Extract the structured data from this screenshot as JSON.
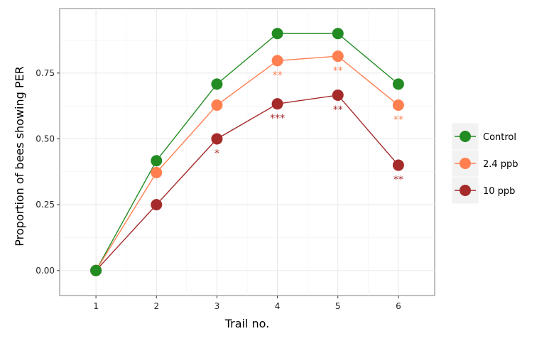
{
  "chart_data": {
    "type": "line",
    "title": "",
    "xlabel": "Trail no.",
    "ylabel": "Proportion of bees showing PER",
    "x": [
      1,
      2,
      3,
      4,
      5,
      6
    ],
    "x_ticks": [
      "1",
      "2",
      "3",
      "4",
      "5",
      "6"
    ],
    "y_ticks": [
      "0.00",
      "0.25",
      "0.50",
      "0.75"
    ],
    "y_tick_values": [
      0,
      0.25,
      0.5,
      0.75
    ],
    "xlim": [
      0.4,
      6.6
    ],
    "ylim": [
      -0.095,
      0.995
    ],
    "grid": true,
    "legend_position": "right",
    "series": [
      {
        "name": "Control",
        "color": "#228b22",
        "values": [
          0.0,
          0.417,
          0.708,
          0.9,
          0.9,
          0.708
        ],
        "significance": [
          "",
          "",
          "",
          "",
          "",
          ""
        ]
      },
      {
        "name": "2.4 ppb",
        "color": "#ff7f50",
        "values": [
          0.0,
          0.372,
          0.628,
          0.797,
          0.814,
          0.628
        ],
        "significance": [
          "",
          "",
          "",
          "**",
          "**",
          "**"
        ]
      },
      {
        "name": "10 ppb",
        "color": "#a52a2a",
        "values": [
          0.0,
          0.25,
          0.5,
          0.633,
          0.666,
          0.4
        ],
        "significance": [
          "",
          "",
          "*",
          "***",
          "**",
          "**"
        ]
      }
    ]
  }
}
